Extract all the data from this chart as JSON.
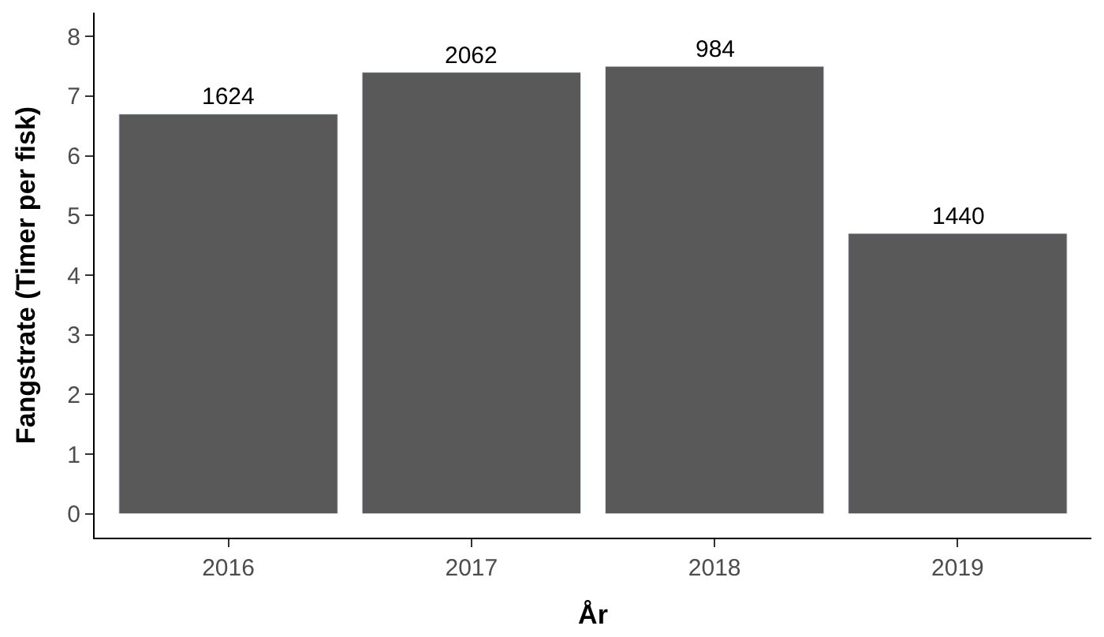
{
  "chart_data": {
    "type": "bar",
    "xlabel": "År",
    "ylabel": "Fangstrate (Timer per fisk)",
    "categories": [
      "2016",
      "2017",
      "2018",
      "2019"
    ],
    "values": [
      6.7,
      7.4,
      7.5,
      4.7
    ],
    "annotations": [
      {
        "text": "1624",
        "x": "2016",
        "y": 6.7
      },
      {
        "text": "2062",
        "x": "2017",
        "y": 7.4
      },
      {
        "text": "984",
        "x": "2018",
        "y": 7.5
      },
      {
        "text": "1440",
        "x": "2019",
        "y": 4.7
      }
    ],
    "color": "#595959",
    "ylim": [
      -0.4,
      8.4
    ],
    "yticks": [
      0,
      1,
      2,
      3,
      4,
      5,
      6,
      7,
      8
    ],
    "grid": false,
    "legend": false
  }
}
